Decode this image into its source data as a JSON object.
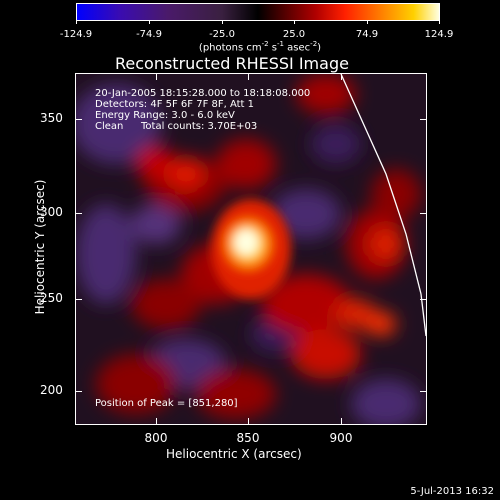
{
  "colorbar": {
    "ticks": [
      "-124.9",
      "-74.9",
      "-25.0",
      "25.0",
      "74.9",
      "124.9"
    ],
    "unit_main": "(photons cm",
    "unit_sup1": "-2",
    "unit_mid": " s",
    "unit_sup2": "-1",
    "unit_end": " asec",
    "unit_sup3": "-2",
    "unit_close": ")"
  },
  "plot": {
    "title": "Reconstructed RHESSI Image",
    "info": {
      "time": "20-Jan-2005 18:15:28.000 to 18:18:08.000",
      "detectors": "Detectors: 4F 5F 6F 7F 8F, Att 1",
      "energy": "Energy Range: 3.0 - 6.0 keV",
      "clean": "Clean",
      "counts": "Total counts: 3.70E+03"
    },
    "peak": "Position of Peak = [851,280]",
    "y_ticks": [
      "350",
      "300",
      "250",
      "200"
    ],
    "x_ticks": [
      "800",
      "850",
      "900"
    ],
    "ylabel": "Heliocentric Y (arcsec)",
    "xlabel": "Heliocentric X (arcsec)"
  },
  "footer": {
    "timestamp": "5-Jul-2013 16:32"
  },
  "colors": {
    "background": "#000000",
    "foreground": "#ffffff",
    "peak": "#ffffe0",
    "negative": "#3a1a5a"
  }
}
